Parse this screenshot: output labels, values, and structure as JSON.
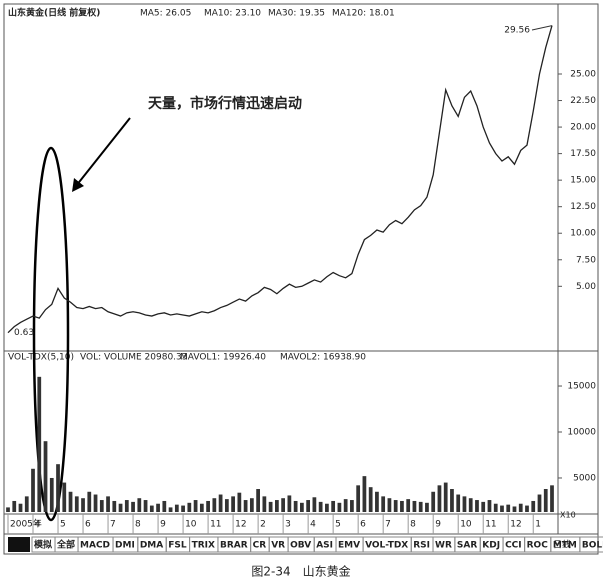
{
  "chart_data": {
    "type": "stock",
    "title": "山东黄金(日线 前复权)",
    "indicators": [
      "MA5: 26.05",
      "MA10: 23.10",
      "MA30: 19.35",
      "MA120: 18.01"
    ],
    "annotation": "天量，市场行情迅速启动",
    "high_label": 29.56,
    "low_label": 0.63,
    "categories": [
      "2005年",
      null,
      null,
      null,
      "4",
      null,
      null,
      null,
      "5",
      null,
      null,
      null,
      "6",
      null,
      null,
      null,
      "7",
      null,
      null,
      null,
      "8",
      null,
      null,
      null,
      "9",
      null,
      null,
      null,
      "10",
      null,
      null,
      null,
      "11",
      null,
      null,
      null,
      "12",
      null,
      null,
      null,
      "2",
      null,
      null,
      null,
      "3",
      null,
      null,
      null,
      "4",
      null,
      null,
      null,
      "5",
      null,
      null,
      null,
      "6",
      null,
      null,
      null,
      "7",
      null,
      null,
      null,
      "8",
      null,
      null,
      null,
      "9",
      null,
      null,
      null,
      "10",
      null,
      null,
      null,
      "11",
      null,
      null,
      null,
      "12",
      null,
      null,
      null,
      "1",
      null,
      null,
      null
    ],
    "price": {
      "color": "#222222",
      "values": [
        0.63,
        1.2,
        1.6,
        1.9,
        2.2,
        2.0,
        2.8,
        3.3,
        4.8,
        3.9,
        3.5,
        3.0,
        2.9,
        3.1,
        2.9,
        3.0,
        2.6,
        2.4,
        2.2,
        2.5,
        2.6,
        2.5,
        2.3,
        2.2,
        2.4,
        2.5,
        2.3,
        2.4,
        2.3,
        2.2,
        2.4,
        2.6,
        2.5,
        2.7,
        3.0,
        3.2,
        3.5,
        3.8,
        3.6,
        4.1,
        4.4,
        4.9,
        4.7,
        4.3,
        4.8,
        5.2,
        4.9,
        5.0,
        5.3,
        5.6,
        5.4,
        5.9,
        6.3,
        6.0,
        5.8,
        6.2,
        8.0,
        9.4,
        9.8,
        10.3,
        10.1,
        10.8,
        11.2,
        10.9,
        11.5,
        12.2,
        12.6,
        13.4,
        15.5,
        19.5,
        23.5,
        22.0,
        21.0,
        22.8,
        23.4,
        22.0,
        20.0,
        18.5,
        17.5,
        16.8,
        17.2,
        16.5,
        17.8,
        18.3,
        21.5,
        25.0,
        27.5,
        29.56
      ],
      "ylim": [
        -1,
        31.5
      ],
      "yticks": [
        {
          "value": 5,
          "label": "5.00"
        },
        {
          "value": 7.5,
          "label": "7.50"
        },
        {
          "value": 10,
          "label": "10.00"
        },
        {
          "value": 12.5,
          "label": "12.50"
        },
        {
          "value": 15,
          "label": "15.00"
        },
        {
          "value": 17.5,
          "label": "17.50"
        },
        {
          "value": 20,
          "label": "20.00"
        },
        {
          "value": 22.5,
          "label": "22.50"
        },
        {
          "value": 25,
          "label": "25.00"
        }
      ]
    },
    "volume": {
      "title": "VOL-TDX(5,10)",
      "indicators": [
        "VOL: VOLUME 20980.33",
        "MAVOL1: 19926.40",
        "MAVOL2: 16938.90"
      ],
      "unit": "X10",
      "color": "#333333",
      "values": [
        1800,
        2500,
        2200,
        3000,
        6000,
        16000,
        9000,
        5000,
        6500,
        4500,
        3500,
        3000,
        2800,
        3500,
        3200,
        2600,
        3000,
        2500,
        2200,
        2600,
        2400,
        2800,
        2600,
        2000,
        2200,
        2500,
        1800,
        2100,
        2000,
        2300,
        2600,
        2200,
        2500,
        2800,
        3200,
        2700,
        3000,
        3400,
        2600,
        2800,
        3800,
        3000,
        2400,
        2600,
        2800,
        3100,
        2500,
        2300,
        2600,
        2900,
        2400,
        2200,
        2500,
        2300,
        2700,
        2600,
        4200,
        5200,
        4000,
        3500,
        3000,
        2800,
        2600,
        2500,
        2700,
        2500,
        2400,
        2300,
        3500,
        4200,
        4500,
        3800,
        3200,
        3000,
        2800,
        2600,
        2400,
        2600,
        2200,
        2000,
        2100,
        1900,
        2200,
        2000,
        2500,
        3200,
        3800,
        4200
      ],
      "ylim": [
        1300,
        18700
      ],
      "yticks": [
        5000,
        10000,
        15000
      ]
    },
    "tabs": [
      "模拟",
      "全部",
      "MACD",
      "DMI",
      "DMA",
      "FSL",
      "TRIX",
      "BRAR",
      "CR",
      "VR",
      "OBV",
      "ASI",
      "EMV",
      "VOL-TDX",
      "RSI",
      "WR",
      "SAR",
      "KDJ",
      "CCI",
      "ROC",
      "MTM",
      "BOLL"
    ],
    "period": "日线",
    "caption": "图2-34　山东黄金"
  }
}
